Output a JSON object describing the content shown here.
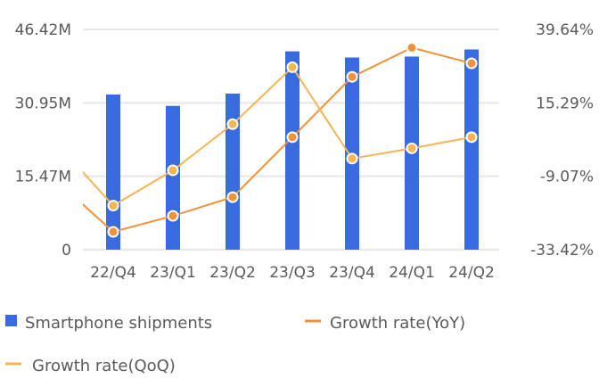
{
  "chart_data": {
    "type": "bar+line",
    "categories": [
      "22/Q4",
      "23/Q1",
      "23/Q2",
      "23/Q3",
      "23/Q4",
      "24/Q1",
      "24/Q2"
    ],
    "left_axis": {
      "ticks": [
        "0",
        "15.47M",
        "30.95M",
        "46.42M"
      ],
      "tick_values": [
        0,
        15.47,
        30.95,
        46.42
      ],
      "range": [
        0,
        46.42
      ],
      "unit": "M"
    },
    "right_axis": {
      "ticks": [
        "-33.42%",
        "-9.07%",
        "15.29%",
        "39.64%"
      ],
      "tick_values": [
        -33.42,
        -9.07,
        15.29,
        39.64
      ],
      "range": [
        -33.42,
        39.64
      ],
      "unit": "%"
    },
    "grid": true,
    "legend_position": "bottom",
    "series": [
      {
        "name": "Smartphone shipments",
        "type": "bar",
        "axis": "left",
        "color": "#386bdf",
        "values": [
          32.7,
          30.3,
          32.9,
          41.8,
          40.5,
          40.7,
          42.2
        ]
      },
      {
        "name": "Growth rate(YoY)",
        "type": "line",
        "axis": "right",
        "color": "#f0923a",
        "prev_value": -9.6,
        "values": [
          -27.5,
          -22.2,
          -16.0,
          3.9,
          23.9,
          33.6,
          28.4
        ]
      },
      {
        "name": "Growth rate(QoQ)",
        "type": "line",
        "axis": "right",
        "color": "#f5b552",
        "prev_value": 3.0,
        "values": [
          -18.8,
          -7.1,
          8.2,
          27.1,
          -3.2,
          0.2,
          3.9
        ]
      }
    ]
  }
}
